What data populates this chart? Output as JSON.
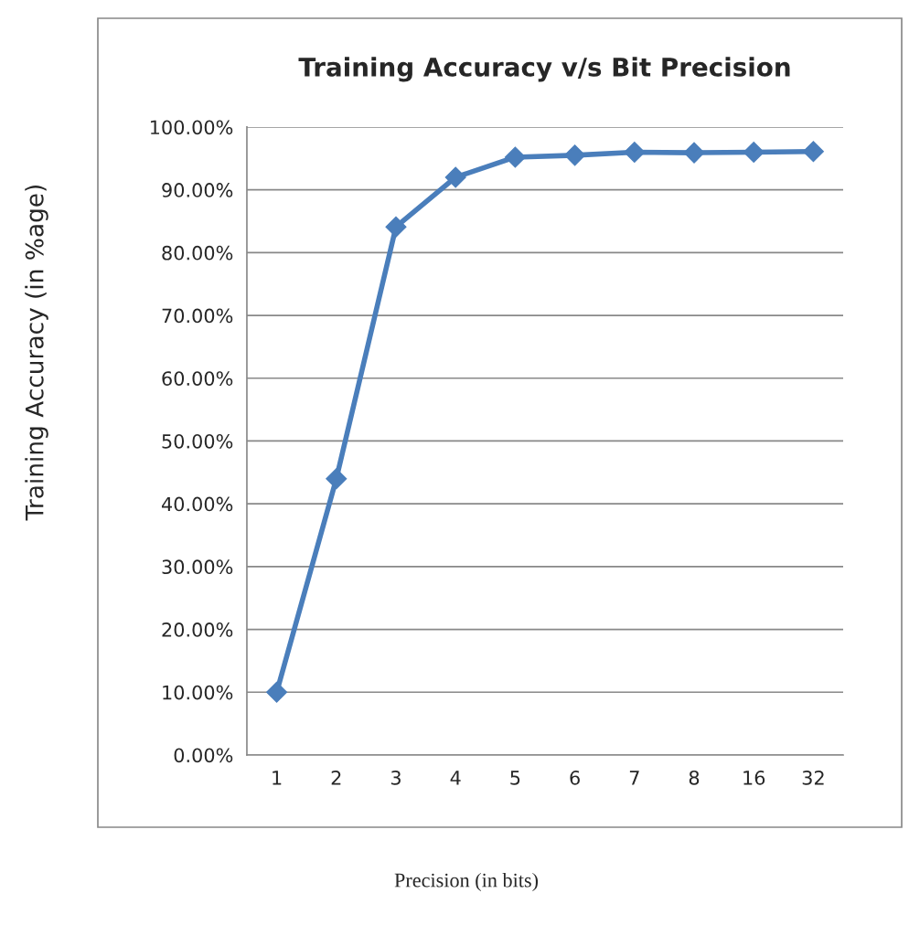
{
  "chart_data": {
    "type": "line",
    "title": "Training Accuracy v/s Bit Precision",
    "xlabel": "Precision (in bits)",
    "ylabel": "Training Accuracy (in %age)",
    "categories": [
      "1",
      "2",
      "3",
      "4",
      "5",
      "6",
      "7",
      "8",
      "16",
      "32"
    ],
    "series": [
      {
        "color": "#4a7ebb",
        "values": [
          10.0,
          44.0,
          84.1,
          92.0,
          95.2,
          95.5,
          96.0,
          95.9,
          96.0,
          96.1
        ]
      }
    ],
    "ylim": [
      0,
      100
    ],
    "yticks": [
      {
        "value": 0,
        "label": "0.00%"
      },
      {
        "value": 10,
        "label": "10.00%"
      },
      {
        "value": 20,
        "label": "20.00%"
      },
      {
        "value": 30,
        "label": "30.00%"
      },
      {
        "value": 40,
        "label": "40.00%"
      },
      {
        "value": 50,
        "label": "50.00%"
      },
      {
        "value": 60,
        "label": "60.00%"
      },
      {
        "value": 70,
        "label": "70.00%"
      },
      {
        "value": 80,
        "label": "80.00%"
      },
      {
        "value": 90,
        "label": "90.00%"
      },
      {
        "value": 100,
        "label": "100.00%"
      }
    ],
    "grid": "y",
    "marker": "diamond",
    "line_style": "solid",
    "legend": false
  }
}
